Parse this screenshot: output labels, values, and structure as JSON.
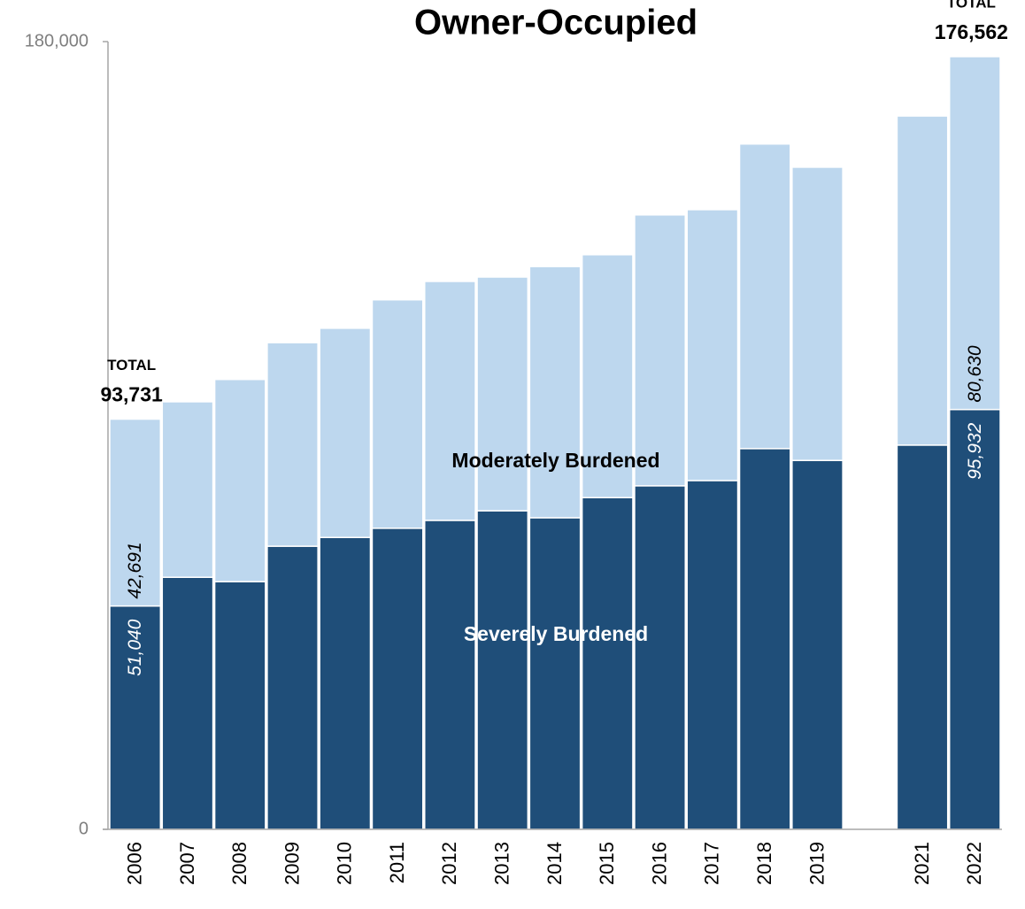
{
  "chart_data": {
    "type": "stacked_bar",
    "title": "Owner-Occupied",
    "categories": [
      "2006",
      "2007",
      "2008",
      "2009",
      "2010",
      "2011",
      "2012",
      "2013",
      "2014",
      "2015",
      "2016",
      "2017",
      "2018",
      "2019",
      null,
      "2021",
      "2022"
    ],
    "series": [
      {
        "name": "Severely Burdened",
        "color": "#1f4e79",
        "label_color": "#ffffff",
        "values": [
          51040,
          57600,
          56600,
          64700,
          66700,
          68800,
          70600,
          72800,
          71200,
          75800,
          78500,
          79700,
          87000,
          84300,
          null,
          87800,
          95932
        ],
        "value_labels": [
          "51,040",
          null,
          null,
          null,
          null,
          null,
          null,
          null,
          null,
          null,
          null,
          null,
          null,
          null,
          null,
          null,
          "95,932"
        ]
      },
      {
        "name": "Moderately Burdened",
        "color": "#bdd7ee",
        "label_color": "#000000",
        "values": [
          42691,
          40100,
          46200,
          46500,
          47800,
          52200,
          54600,
          53400,
          57400,
          55500,
          61900,
          61900,
          69600,
          67000,
          null,
          75200,
          80630
        ],
        "value_labels": [
          "42,691",
          null,
          null,
          null,
          null,
          null,
          null,
          null,
          null,
          null,
          null,
          null,
          null,
          null,
          null,
          null,
          "80,630"
        ]
      }
    ],
    "totals": [
      93731,
      null,
      null,
      null,
      null,
      null,
      null,
      null,
      null,
      null,
      null,
      null,
      null,
      null,
      null,
      null,
      176562
    ],
    "total_labels": [
      "93,731",
      null,
      null,
      null,
      null,
      null,
      null,
      null,
      null,
      null,
      null,
      null,
      null,
      null,
      null,
      null,
      "176,562"
    ],
    "total_title": "TOTAL",
    "ylim": [
      0,
      180000
    ],
    "yticks": [
      0,
      {
        "value": 180000,
        "label": "180,000"
      }
    ],
    "grid": false
  }
}
